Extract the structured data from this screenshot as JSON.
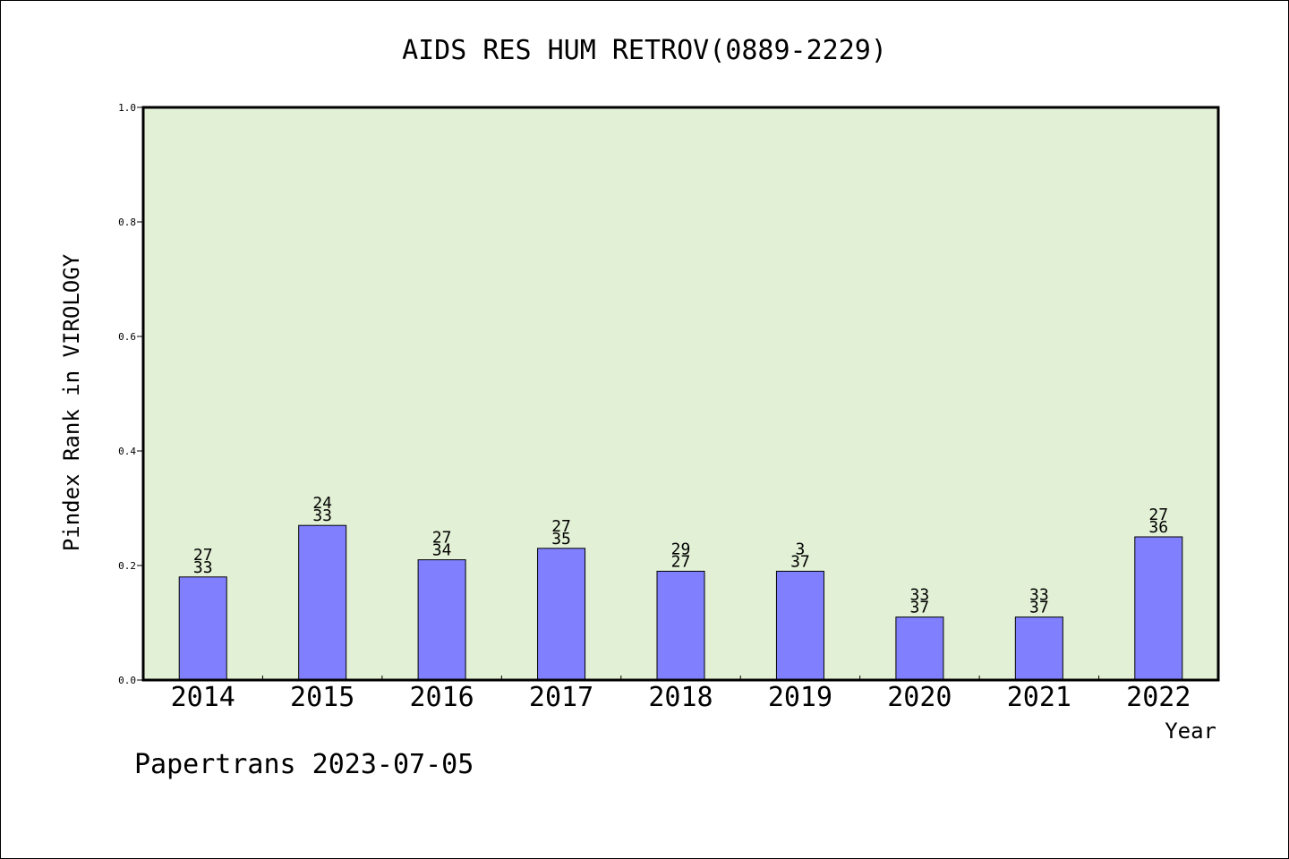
{
  "chart_data": {
    "type": "bar",
    "title": "AIDS RES HUM RETROV(0889-2229)",
    "xlabel": "Year",
    "ylabel": "Pindex Rank in VIROLOGY",
    "ylim": [
      0.0,
      1.0
    ],
    "yticks": [
      "0.0",
      "0.2",
      "0.4",
      "0.6",
      "0.8",
      "1.0"
    ],
    "categories": [
      "2014",
      "2015",
      "2016",
      "2017",
      "2018",
      "2019",
      "2020",
      "2021",
      "2022"
    ],
    "values": [
      0.18,
      0.27,
      0.21,
      0.23,
      0.19,
      0.19,
      0.11,
      0.11,
      0.25
    ],
    "labels_top": [
      "27",
      "24",
      "27",
      "27",
      "29",
      "3",
      "33",
      "33",
      "27"
    ],
    "labels_bottom": [
      "33",
      "33",
      "34",
      "35",
      "27",
      "37",
      "37",
      "37",
      "36"
    ],
    "grid": false,
    "colors": {
      "plot_background": "#e2f0d5",
      "bar_fill": "#8080ff",
      "bar_stroke": "#000000"
    }
  },
  "footer": {
    "text": "Papertrans 2023-07-05"
  }
}
